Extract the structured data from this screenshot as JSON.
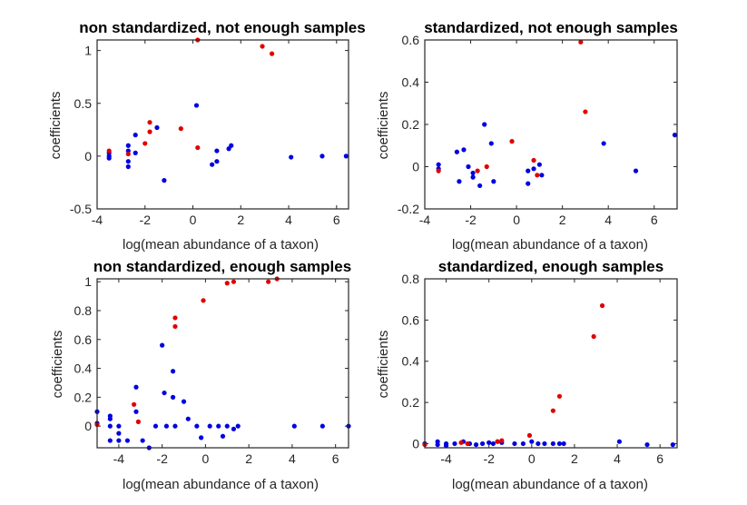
{
  "chart_data": [
    {
      "type": "scatter",
      "title": "non standardized, not enough samples",
      "xlabel": "log(mean abundance of a taxon)",
      "ylabel": "coefficients",
      "xlim": [
        -4,
        6.5
      ],
      "ylim": [
        -0.5,
        1.1
      ],
      "xticks": [
        -4,
        -2,
        0,
        2,
        4,
        6
      ],
      "yticks": [
        -0.5,
        0,
        0.5,
        1
      ],
      "ytick_labels": [
        "-0.5",
        "0",
        "0.5",
        "1"
      ],
      "grid": false,
      "series": [
        {
          "color": "#0000e0",
          "points": [
            [
              -3.5,
              0.0
            ],
            [
              -3.5,
              -0.02
            ],
            [
              -3.5,
              0.03
            ],
            [
              -2.7,
              0.1
            ],
            [
              -2.7,
              0.05
            ],
            [
              -2.7,
              -0.05
            ],
            [
              -2.7,
              -0.1
            ],
            [
              -2.4,
              0.2
            ],
            [
              -2.4,
              0.03
            ],
            [
              -1.5,
              0.27
            ],
            [
              -1.2,
              -0.23
            ],
            [
              0.15,
              0.48
            ],
            [
              0.8,
              -0.08
            ],
            [
              1.0,
              0.05
            ],
            [
              1.0,
              -0.05
            ],
            [
              1.5,
              0.07
            ],
            [
              1.6,
              0.1
            ],
            [
              4.1,
              -0.01
            ],
            [
              5.4,
              0.0
            ],
            [
              6.4,
              0.0
            ]
          ]
        },
        {
          "color": "#e00000",
          "points": [
            [
              -3.5,
              0.05
            ],
            [
              -2.7,
              0.02
            ],
            [
              -2.0,
              0.12
            ],
            [
              -1.8,
              0.23
            ],
            [
              -1.8,
              0.32
            ],
            [
              -0.5,
              0.26
            ],
            [
              0.2,
              0.08
            ],
            [
              0.2,
              1.1
            ],
            [
              2.9,
              1.04
            ],
            [
              3.3,
              0.97
            ]
          ]
        }
      ]
    },
    {
      "type": "scatter",
      "title": "standardized, not enough samples",
      "xlabel": "log(mean abundance of a taxon)",
      "ylabel": "coefficients",
      "xlim": [
        -4,
        7
      ],
      "ylim": [
        -0.2,
        0.6
      ],
      "xticks": [
        -4,
        -2,
        0,
        2,
        4,
        6
      ],
      "yticks": [
        -0.2,
        0,
        0.2,
        0.4,
        0.6
      ],
      "ytick_labels": [
        "-0.2",
        "0",
        "0.2",
        "0.4",
        "0.6"
      ],
      "grid": false,
      "series": [
        {
          "color": "#0000e0",
          "points": [
            [
              -3.4,
              0.01
            ],
            [
              -3.4,
              -0.01
            ],
            [
              -2.6,
              0.07
            ],
            [
              -2.5,
              -0.07
            ],
            [
              -2.3,
              0.08
            ],
            [
              -2.1,
              0.0
            ],
            [
              -1.9,
              -0.03
            ],
            [
              -1.9,
              -0.05
            ],
            [
              -1.6,
              -0.09
            ],
            [
              -1.4,
              0.2
            ],
            [
              -1.1,
              0.11
            ],
            [
              -1.0,
              -0.07
            ],
            [
              0.5,
              -0.02
            ],
            [
              0.5,
              -0.08
            ],
            [
              0.75,
              -0.01
            ],
            [
              1.0,
              0.01
            ],
            [
              1.1,
              -0.04
            ],
            [
              3.8,
              0.11
            ],
            [
              5.2,
              -0.02
            ],
            [
              6.9,
              0.15
            ]
          ]
        },
        {
          "color": "#e00000",
          "points": [
            [
              -3.4,
              -0.02
            ],
            [
              -1.7,
              -0.02
            ],
            [
              -1.3,
              0.0
            ],
            [
              -0.2,
              0.12
            ],
            [
              0.75,
              0.03
            ],
            [
              0.9,
              -0.04
            ],
            [
              2.8,
              0.59
            ],
            [
              3.0,
              0.26
            ]
          ]
        }
      ]
    },
    {
      "type": "scatter",
      "title": "non standardized, enough samples",
      "xlabel": "log(mean abundance of a taxon)",
      "ylabel": "coefficients",
      "xlim": [
        -5,
        6.6
      ],
      "ylim": [
        -0.15,
        1.02
      ],
      "xticks": [
        -4,
        -2,
        0,
        2,
        4,
        6
      ],
      "yticks": [
        0,
        0.2,
        0.4,
        0.6,
        0.8,
        1
      ],
      "ytick_labels": [
        "0",
        "0.2",
        "0.4",
        "0.6",
        "0.8",
        "1"
      ],
      "grid": false,
      "series": [
        {
          "color": "#0000e0",
          "points": [
            [
              -5.0,
              0.1
            ],
            [
              -5.0,
              0.02
            ],
            [
              -4.4,
              0.07
            ],
            [
              -4.4,
              0.05
            ],
            [
              -4.4,
              -0.1
            ],
            [
              -4.4,
              0.0
            ],
            [
              -4.0,
              0.0
            ],
            [
              -4.0,
              -0.05
            ],
            [
              -4.0,
              -0.1
            ],
            [
              -3.6,
              -0.1
            ],
            [
              -3.2,
              0.27
            ],
            [
              -3.2,
              0.1
            ],
            [
              -2.9,
              -0.1
            ],
            [
              -2.6,
              -0.15
            ],
            [
              -2.3,
              0.0
            ],
            [
              -2.0,
              0.56
            ],
            [
              -1.9,
              0.23
            ],
            [
              -1.8,
              0.0
            ],
            [
              -1.5,
              0.38
            ],
            [
              -1.5,
              0.2
            ],
            [
              -1.4,
              0.0
            ],
            [
              -1.0,
              0.17
            ],
            [
              -0.8,
              0.05
            ],
            [
              -0.4,
              0.0
            ],
            [
              -0.2,
              -0.08
            ],
            [
              0.2,
              0.0
            ],
            [
              0.6,
              0.0
            ],
            [
              0.8,
              -0.07
            ],
            [
              1.0,
              0.0
            ],
            [
              1.3,
              -0.02
            ],
            [
              1.5,
              0.0
            ],
            [
              4.1,
              0.0
            ],
            [
              5.4,
              0.0
            ],
            [
              6.6,
              0.0
            ]
          ]
        },
        {
          "color": "#e00000",
          "points": [
            [
              -5.0,
              0.01
            ],
            [
              -3.3,
              0.15
            ],
            [
              -3.1,
              0.03
            ],
            [
              -1.4,
              0.75
            ],
            [
              -1.4,
              0.69
            ],
            [
              -0.1,
              0.87
            ],
            [
              1.0,
              0.99
            ],
            [
              1.3,
              1.0
            ],
            [
              2.9,
              1.0
            ],
            [
              3.3,
              1.02
            ]
          ]
        }
      ]
    },
    {
      "type": "scatter",
      "title": "standardized, enough samples",
      "xlabel": "log(mean abundance of a taxon)",
      "ylabel": "coefficients",
      "xlim": [
        -5,
        6.8
      ],
      "ylim": [
        -0.02,
        0.8
      ],
      "xticks": [
        -4,
        -2,
        0,
        2,
        4,
        6
      ],
      "yticks": [
        0,
        0.2,
        0.4,
        0.6,
        0.8
      ],
      "ytick_labels": [
        "0",
        "0.2",
        "0.4",
        "0.6",
        "0.8"
      ],
      "grid": false,
      "series": [
        {
          "color": "#0000e0",
          "points": [
            [
              -5.0,
              0.0
            ],
            [
              -4.4,
              0.01
            ],
            [
              -4.4,
              -0.005
            ],
            [
              -4.0,
              0.0
            ],
            [
              -4.0,
              -0.01
            ],
            [
              -3.6,
              0.0
            ],
            [
              -3.2,
              0.01
            ],
            [
              -2.9,
              0.0
            ],
            [
              -2.6,
              -0.005
            ],
            [
              -2.3,
              0.0
            ],
            [
              -2.0,
              0.005
            ],
            [
              -1.8,
              0.0
            ],
            [
              -1.6,
              0.01
            ],
            [
              -1.4,
              0.005
            ],
            [
              -0.8,
              0.0
            ],
            [
              -0.4,
              0.0
            ],
            [
              0.0,
              0.01
            ],
            [
              0.3,
              0.0
            ],
            [
              0.6,
              0.0
            ],
            [
              1.0,
              0.0
            ],
            [
              1.3,
              0.0
            ],
            [
              1.5,
              0.0
            ],
            [
              4.1,
              0.01
            ],
            [
              5.4,
              -0.005
            ],
            [
              6.6,
              -0.005
            ]
          ]
        },
        {
          "color": "#e00000",
          "points": [
            [
              -5.0,
              -0.005
            ],
            [
              -3.3,
              0.005
            ],
            [
              -3.0,
              0.0
            ],
            [
              -1.6,
              0.01
            ],
            [
              -1.4,
              0.015
            ],
            [
              -0.1,
              0.04
            ],
            [
              1.0,
              0.16
            ],
            [
              1.3,
              0.23
            ],
            [
              2.9,
              0.52
            ],
            [
              3.3,
              0.67
            ]
          ]
        }
      ]
    }
  ]
}
